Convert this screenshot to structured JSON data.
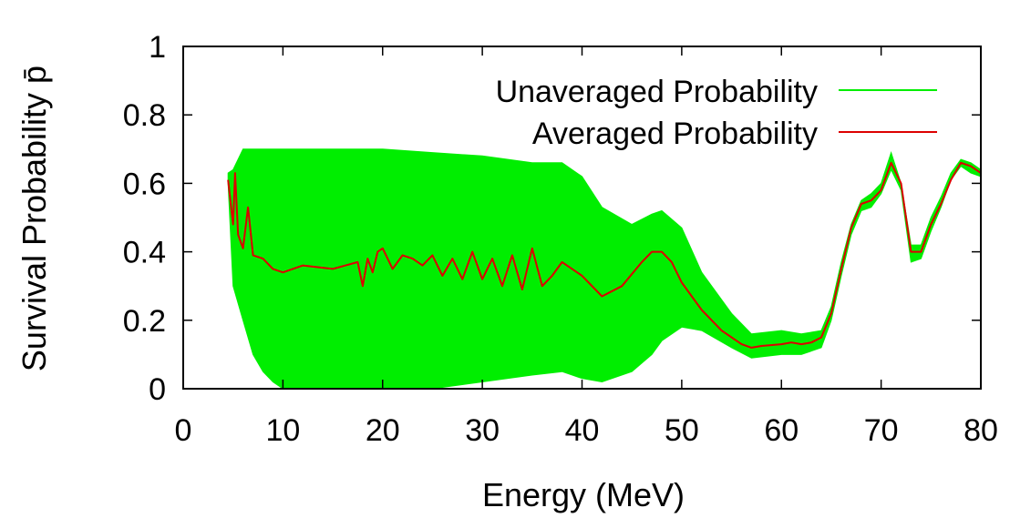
{
  "chart_data": {
    "type": "line",
    "xlabel": "Energy (MeV)",
    "ylabel": "Survival Probability p̄",
    "xlim": [
      0,
      80
    ],
    "ylim": [
      0,
      1
    ],
    "xticks": [
      "0",
      "10",
      "20",
      "30",
      "40",
      "50",
      "60",
      "70",
      "80"
    ],
    "yticks": [
      "0",
      "0.2",
      "0.4",
      "0.6",
      "0.8",
      "1"
    ],
    "grid": false,
    "legend_position": "top-right",
    "series": [
      {
        "name": "Unaveraged Probability",
        "color": "#00ee00",
        "style": "rapid oscillation band (envelope)",
        "x": [
          4.5,
          5,
          6,
          7,
          8,
          9,
          10,
          15,
          18,
          20,
          25,
          30,
          35,
          38,
          40,
          42,
          45,
          47,
          48,
          50,
          52,
          55,
          57,
          60,
          62,
          64,
          65,
          66,
          67,
          68,
          69,
          70,
          71,
          72,
          73,
          74,
          75,
          76,
          77,
          78,
          79,
          80
        ],
        "upper": [
          0.63,
          0.64,
          0.7,
          0.7,
          0.7,
          0.7,
          0.7,
          0.7,
          0.7,
          0.7,
          0.69,
          0.68,
          0.66,
          0.66,
          0.62,
          0.53,
          0.48,
          0.51,
          0.52,
          0.47,
          0.34,
          0.22,
          0.16,
          0.17,
          0.16,
          0.17,
          0.24,
          0.37,
          0.48,
          0.55,
          0.57,
          0.6,
          0.69,
          0.6,
          0.42,
          0.42,
          0.5,
          0.56,
          0.63,
          0.67,
          0.66,
          0.64
        ],
        "lower": [
          0.6,
          0.3,
          0.2,
          0.1,
          0.05,
          0.02,
          0.0,
          0.0,
          0.0,
          0.0,
          0.0,
          0.02,
          0.04,
          0.05,
          0.03,
          0.02,
          0.05,
          0.1,
          0.14,
          0.18,
          0.17,
          0.12,
          0.09,
          0.1,
          0.1,
          0.12,
          0.2,
          0.33,
          0.45,
          0.52,
          0.53,
          0.57,
          0.64,
          0.58,
          0.37,
          0.38,
          0.46,
          0.53,
          0.61,
          0.65,
          0.63,
          0.62
        ]
      },
      {
        "name": "Averaged Probability",
        "color": "#dd0000",
        "x": [
          4.5,
          5,
          5.2,
          5.5,
          6,
          6.5,
          7,
          8,
          9,
          10,
          12,
          15,
          17.5,
          18,
          18.5,
          19,
          19.5,
          20,
          21,
          22,
          23,
          24,
          25,
          26,
          27,
          28,
          29,
          30,
          31,
          32,
          33,
          34,
          35,
          36,
          37,
          38,
          40,
          42,
          44,
          46,
          47,
          48,
          49,
          50,
          52,
          54,
          56,
          57,
          58,
          60,
          61,
          62,
          63,
          64,
          65,
          66,
          67,
          68,
          69,
          70,
          71,
          72,
          73,
          74,
          75,
          76,
          77,
          78,
          79,
          80
        ],
        "y": [
          0.61,
          0.48,
          0.63,
          0.45,
          0.41,
          0.53,
          0.39,
          0.38,
          0.35,
          0.34,
          0.36,
          0.35,
          0.37,
          0.3,
          0.38,
          0.34,
          0.4,
          0.41,
          0.35,
          0.39,
          0.38,
          0.36,
          0.39,
          0.33,
          0.38,
          0.32,
          0.4,
          0.32,
          0.38,
          0.3,
          0.39,
          0.29,
          0.41,
          0.3,
          0.33,
          0.37,
          0.33,
          0.27,
          0.3,
          0.37,
          0.4,
          0.4,
          0.37,
          0.31,
          0.23,
          0.17,
          0.13,
          0.12,
          0.125,
          0.13,
          0.135,
          0.13,
          0.135,
          0.15,
          0.22,
          0.35,
          0.47,
          0.54,
          0.55,
          0.58,
          0.66,
          0.6,
          0.4,
          0.4,
          0.48,
          0.54,
          0.61,
          0.66,
          0.65,
          0.63
        ]
      }
    ]
  }
}
